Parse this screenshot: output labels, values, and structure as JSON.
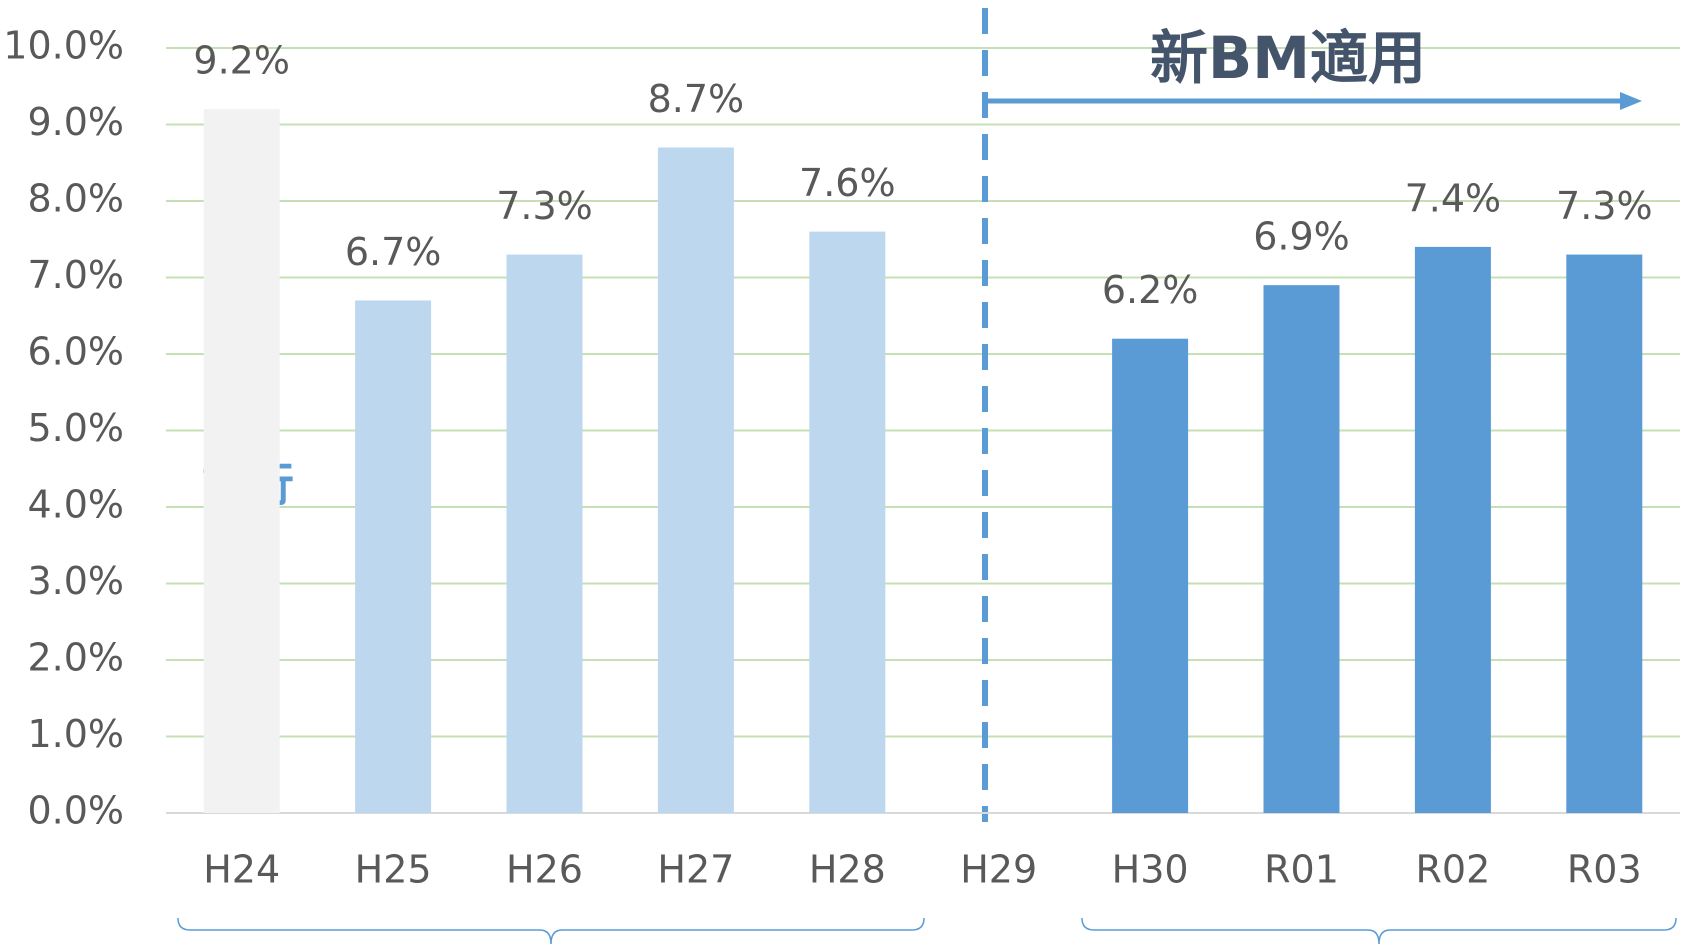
{
  "chart_data": {
    "type": "bar",
    "categories": [
      "H24",
      "H25",
      "H26",
      "H27",
      "H28",
      "H29",
      "H30",
      "R01",
      "R02",
      "R03"
    ],
    "values": [
      9.2,
      6.7,
      7.3,
      8.7,
      7.6,
      null,
      6.2,
      6.9,
      7.4,
      7.3
    ],
    "value_labels": [
      "9.2%",
      "6.7%",
      "7.3%",
      "8.7%",
      "7.6%",
      null,
      "6.2%",
      "6.9%",
      "7.4%",
      "7.3%"
    ],
    "colors": [
      "#f2f2f2",
      "#bdd7ee",
      "#bdd7ee",
      "#bdd7ee",
      "#bdd7ee",
      null,
      "#5b9bd5",
      "#5b9bd5",
      "#5b9bd5",
      "#5b9bd5"
    ],
    "ylim": [
      0,
      10
    ],
    "yticks": [
      {
        "value": 0,
        "label": "0.0%"
      },
      {
        "value": 1,
        "label": "1.0%"
      },
      {
        "value": 2,
        "label": "2.0%"
      },
      {
        "value": 3,
        "label": "3.0%"
      },
      {
        "value": 4,
        "label": "4.0%"
      },
      {
        "value": 5,
        "label": "5.0%"
      },
      {
        "value": 6,
        "label": "6.0%"
      },
      {
        "value": 7,
        "label": "7.0%"
      },
      {
        "value": 8,
        "label": "8.0%"
      },
      {
        "value": 9,
        "label": "9.0%"
      },
      {
        "value": 10,
        "label": "10.0%"
      }
    ],
    "grid": true,
    "annotations": [
      "新BM適用",
      "試行"
    ]
  }
}
